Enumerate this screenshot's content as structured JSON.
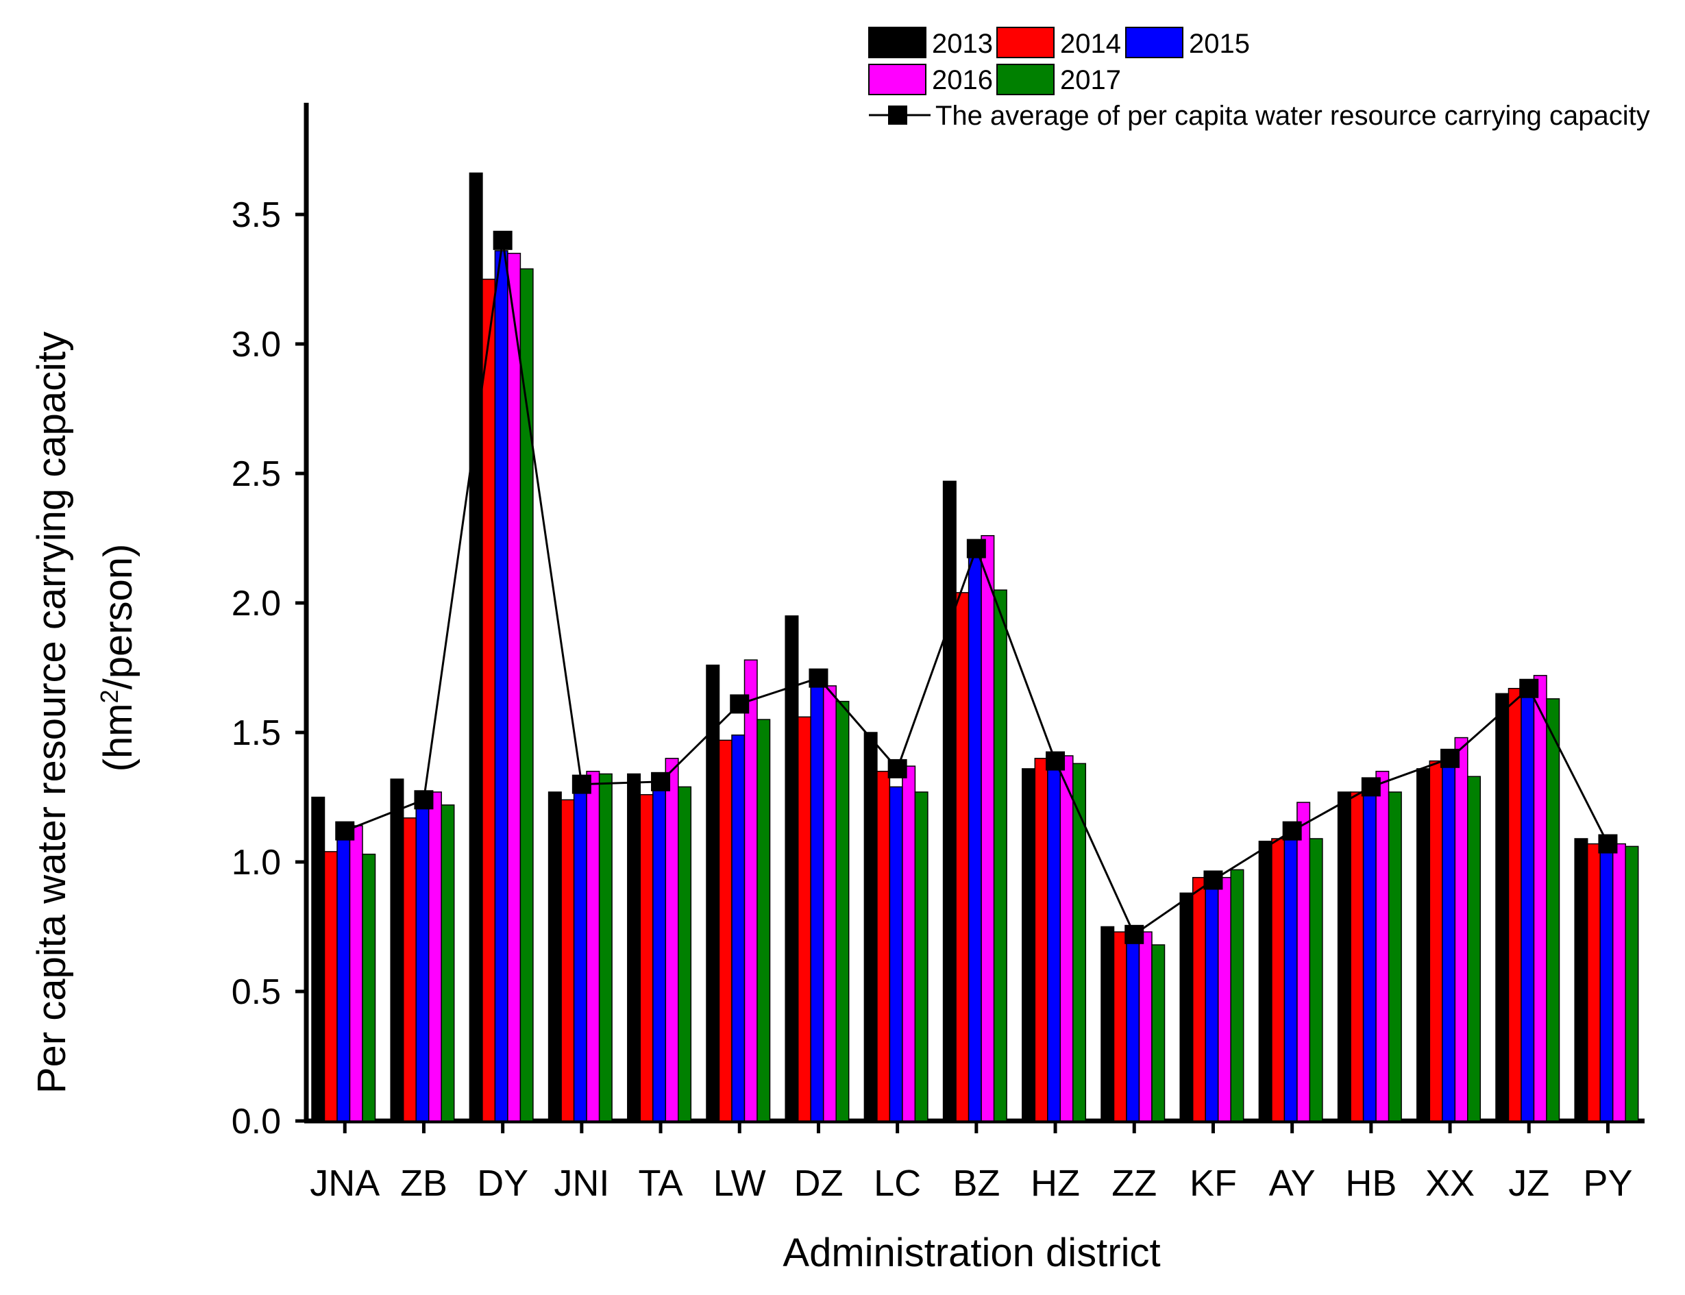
{
  "chart_data": {
    "type": "bar",
    "xlabel": "Administration district",
    "ylabel_line1": "Per capita water resource carrying capacity",
    "ylabel_line2_prefix": "(hm",
    "ylabel_line2_sup": "2",
    "ylabel_line2_suffix": "/person)",
    "ylim": [
      0,
      3.9
    ],
    "yticks": [
      "0.0",
      "0.5",
      "1.0",
      "1.5",
      "2.0",
      "2.5",
      "3.0",
      "3.5"
    ],
    "categories": [
      "JNA",
      "ZB",
      "DY",
      "JNI",
      "TA",
      "LW",
      "DZ",
      "LC",
      "BZ",
      "HZ",
      "ZZ",
      "KF",
      "AY",
      "HB",
      "XX",
      "JZ",
      "PY"
    ],
    "series": [
      {
        "name": "2013",
        "color": "#000000",
        "values": [
          1.25,
          1.32,
          3.66,
          1.27,
          1.34,
          1.76,
          1.95,
          1.5,
          2.47,
          1.36,
          0.75,
          0.88,
          1.08,
          1.27,
          1.36,
          1.65,
          1.09
        ]
      },
      {
        "name": "2014",
        "color": "#ff0000",
        "values": [
          1.04,
          1.17,
          3.25,
          1.24,
          1.26,
          1.47,
          1.56,
          1.35,
          2.04,
          1.4,
          0.73,
          0.94,
          1.09,
          1.27,
          1.39,
          1.67,
          1.07
        ]
      },
      {
        "name": "2015",
        "color": "#0000ff",
        "values": [
          1.14,
          1.24,
          3.36,
          1.29,
          1.28,
          1.49,
          1.7,
          1.29,
          2.24,
          1.38,
          0.71,
          0.93,
          1.12,
          1.28,
          1.42,
          1.69,
          1.04
        ]
      },
      {
        "name": "2016",
        "color": "#ff00ff",
        "values": [
          1.14,
          1.27,
          3.35,
          1.35,
          1.4,
          1.78,
          1.68,
          1.37,
          2.26,
          1.41,
          0.73,
          0.94,
          1.23,
          1.35,
          1.48,
          1.72,
          1.07
        ]
      },
      {
        "name": "2017",
        "color": "#008000",
        "values": [
          1.03,
          1.22,
          3.29,
          1.34,
          1.29,
          1.55,
          1.62,
          1.27,
          2.05,
          1.38,
          0.68,
          0.97,
          1.09,
          1.27,
          1.33,
          1.63,
          1.06
        ]
      }
    ],
    "line_series": {
      "name": "The average of per capita water resource carrying capacity",
      "color": "#000000",
      "values": [
        1.12,
        1.24,
        3.4,
        1.3,
        1.31,
        1.61,
        1.71,
        1.36,
        2.21,
        1.39,
        0.72,
        0.93,
        1.12,
        1.29,
        1.4,
        1.67,
        1.07
      ]
    },
    "legend_position": "top-right"
  }
}
